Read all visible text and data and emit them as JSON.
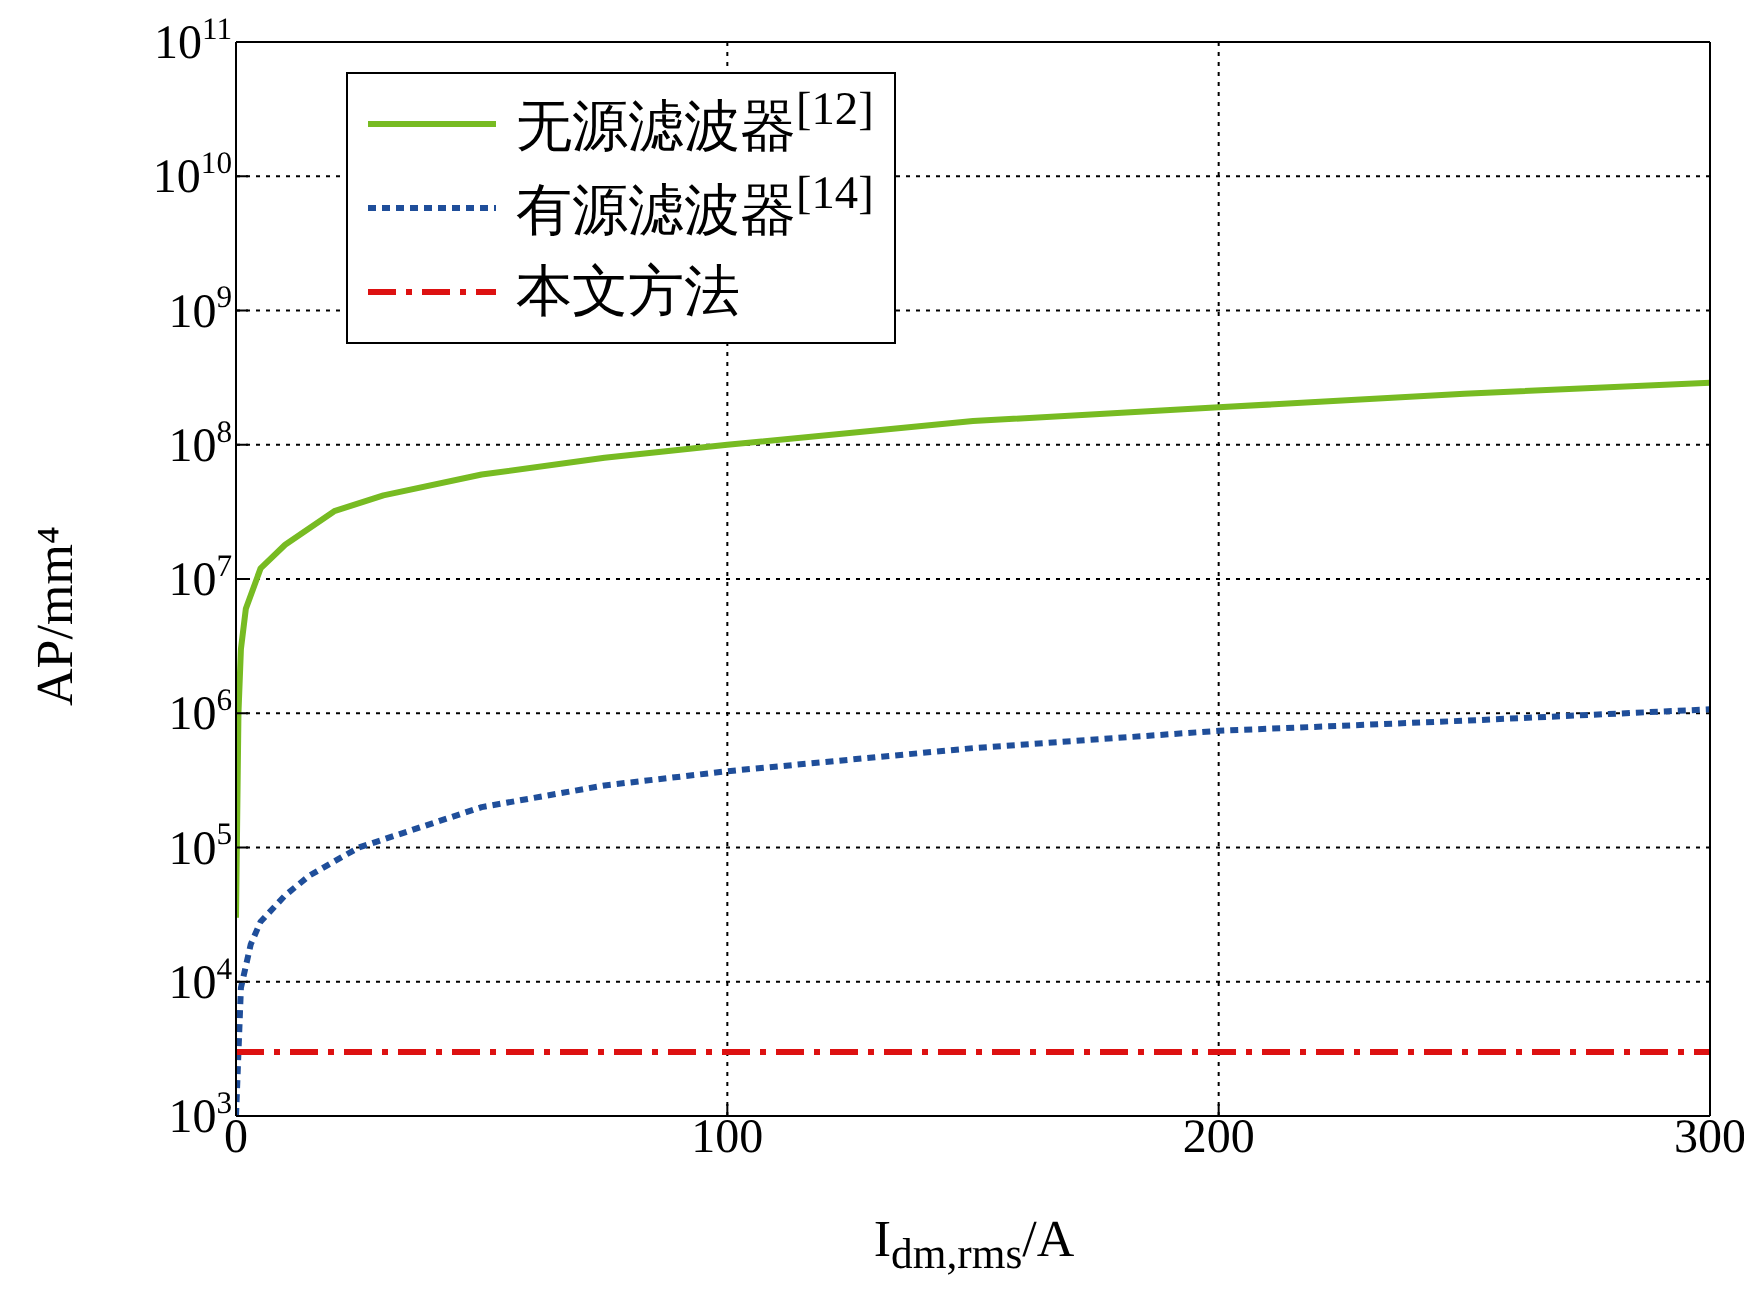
{
  "chart_data": {
    "type": "line",
    "xlabel": "I$_{dm,rms}$/A",
    "ylabel": "AP/mm⁴",
    "log": "y",
    "grid": true,
    "legend": "top left",
    "xlim": [
      0,
      300
    ],
    "xticks": [
      0,
      100,
      200,
      300
    ],
    "ylim": [
      1000,
      100000000000
    ],
    "yticks": [
      {
        "value": 1000,
        "label": "10$^{3}$"
      },
      {
        "value": 10000,
        "label": "10$^{4}$"
      },
      {
        "value": 100000,
        "label": "10$^{5}$"
      },
      {
        "value": 1000000,
        "label": "10$^{6}$"
      },
      {
        "value": 10000000,
        "label": "10$^{7}$"
      },
      {
        "value": 100000000,
        "label": "10$^{8}$"
      },
      {
        "value": 1000000000,
        "label": "10$^{9}$"
      },
      {
        "value": 10000000000,
        "label": "10$^{10}$"
      },
      {
        "value": 100000000000,
        "label": "10$^{11}$"
      }
    ],
    "series": [
      {
        "name": "无源滤波器$^{[12]}$",
        "color": "#77bb22",
        "line_style": "solid",
        "x": [
          0,
          0.5,
          1,
          2,
          5,
          10,
          20,
          30,
          50,
          75,
          100,
          150,
          200,
          250,
          300
        ],
        "values": [
          30000,
          1000000,
          3000000,
          6000000,
          12000000,
          18000000,
          32000000,
          42000000,
          60000000,
          80000000,
          100000000,
          150000000,
          190000000,
          240000000,
          290000000
        ]
      },
      {
        "name": "有源滤波器$^{[14]}$",
        "color": "#1f4e9a",
        "line_style": "dotted",
        "x": [
          0,
          1,
          3,
          5,
          10,
          15,
          25,
          50,
          75,
          100,
          150,
          200,
          250,
          300
        ],
        "values": [
          1000,
          9000,
          19000,
          28000,
          44000,
          62000,
          100000,
          200000,
          290000,
          370000,
          550000,
          740000,
          880000,
          1070000
        ]
      },
      {
        "name": "本文方法",
        "color": "#dd1111",
        "line_style": "dashed",
        "x": [
          0,
          300
        ],
        "values": [
          3000,
          3000
        ]
      }
    ]
  }
}
